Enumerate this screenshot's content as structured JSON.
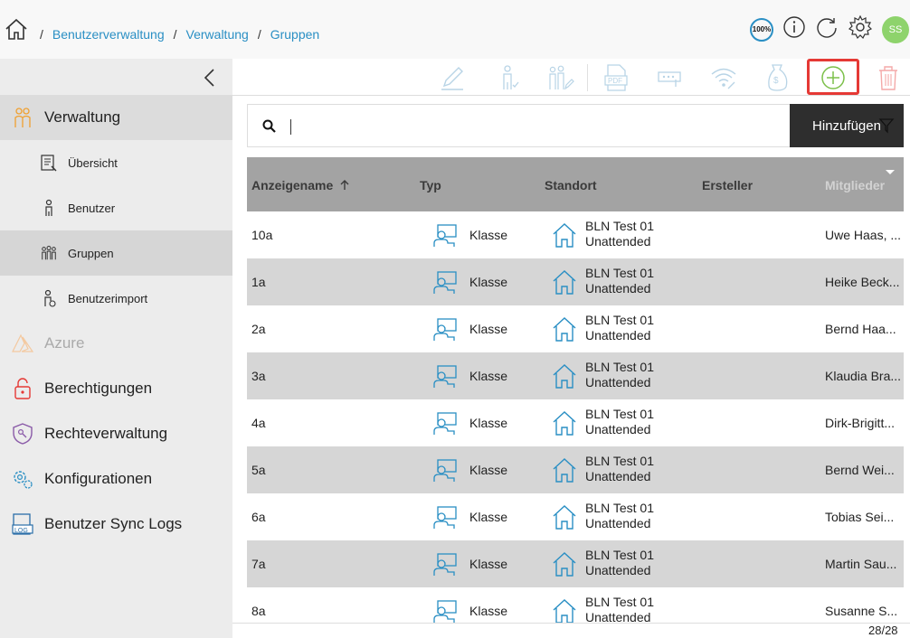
{
  "breadcrumb": {
    "items": [
      "Benutzerverwaltung",
      "Verwaltung",
      "Gruppen"
    ]
  },
  "topbar": {
    "zoom_label": "100%",
    "avatar_initials": "SS"
  },
  "sidebar": {
    "sections": [
      {
        "label": "Verwaltung",
        "icon": "users-icon"
      },
      {
        "label": "Azure",
        "icon": "azure-icon"
      },
      {
        "label": "Berechtigungen",
        "icon": "lock-icon"
      },
      {
        "label": "Rechteverwaltung",
        "icon": "shield-key-icon"
      },
      {
        "label": "Konfigurationen",
        "icon": "gears-icon"
      },
      {
        "label": "Benutzer Sync Logs",
        "icon": "log-icon"
      }
    ],
    "subitems": [
      {
        "label": "Übersicht",
        "icon": "overview-icon"
      },
      {
        "label": "Benutzer",
        "icon": "user-icon"
      },
      {
        "label": "Gruppen",
        "icon": "group-icon"
      },
      {
        "label": "Benutzerimport",
        "icon": "user-import-icon"
      }
    ]
  },
  "toolbar": {
    "buttons": [
      "edit-icon",
      "user-check-icon",
      "group-edit-icon",
      "pdf-icon",
      "password-icon",
      "wifi-icon",
      "money-bag-icon",
      "add-circle-icon",
      "trash-icon"
    ]
  },
  "search": {
    "value": "",
    "add_label": "Hinzufügen"
  },
  "table": {
    "columns": [
      "Anzeigename",
      "Typ",
      "Standort",
      "Ersteller",
      "Mitglieder"
    ],
    "rows": [
      {
        "name": "10a",
        "type": "Klasse",
        "loc1": "BLN Test 01",
        "loc2": "Unattended",
        "members": "Uwe Haas, ..."
      },
      {
        "name": "1a",
        "type": "Klasse",
        "loc1": "BLN Test 01",
        "loc2": "Unattended",
        "members": "Heike Beck..."
      },
      {
        "name": "2a",
        "type": "Klasse",
        "loc1": "BLN Test 01",
        "loc2": "Unattended",
        "members": "Bernd Haa..."
      },
      {
        "name": "3a",
        "type": "Klasse",
        "loc1": "BLN Test 01",
        "loc2": "Unattended",
        "members": "Klaudia Bra..."
      },
      {
        "name": "4a",
        "type": "Klasse",
        "loc1": "BLN Test 01",
        "loc2": "Unattended",
        "members": "Dirk-Brigitt..."
      },
      {
        "name": "5a",
        "type": "Klasse",
        "loc1": "BLN Test 01",
        "loc2": "Unattended",
        "members": "Bernd Wei..."
      },
      {
        "name": "6a",
        "type": "Klasse",
        "loc1": "BLN Test 01",
        "loc2": "Unattended",
        "members": "Tobias Sei..."
      },
      {
        "name": "7a",
        "type": "Klasse",
        "loc1": "BLN Test 01",
        "loc2": "Unattended",
        "members": "Martin Sau..."
      },
      {
        "name": "8a",
        "type": "Klasse",
        "loc1": "BLN Test 01",
        "loc2": "Unattended",
        "members": "Susanne S..."
      }
    ]
  },
  "pager": {
    "count": "28/28"
  },
  "colors": {
    "accent": "#2a8fc4",
    "icon_orange": "#f0a030",
    "add_green": "#7cc04a",
    "highlight_red": "#e53935",
    "header_gray": "#a3a3a3"
  }
}
